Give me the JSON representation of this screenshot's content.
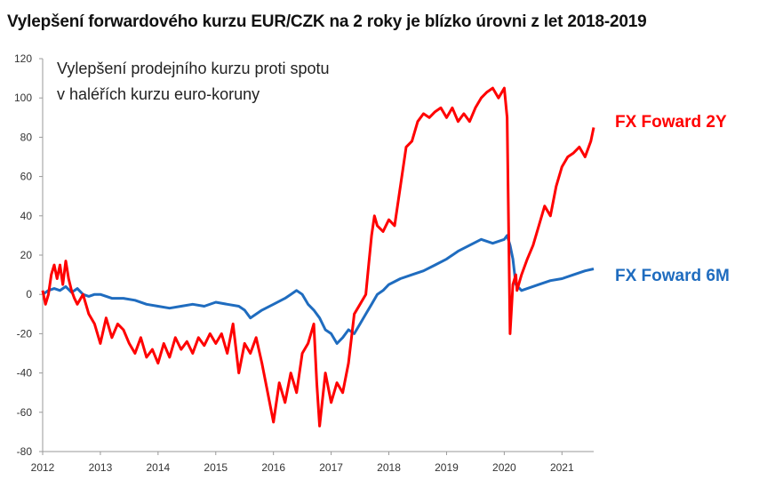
{
  "title": "Vylepšení forwardového kurzu EUR/CZK na 2 roky je blízko úrovni z let 2018-2019",
  "chart_data": {
    "type": "line",
    "subtitle_lines": [
      "Vylepšení prodejního kurzu proti spotu",
      "v haléřích kurzu euro-koruny"
    ],
    "xlabel": "",
    "ylabel": "",
    "xlim": [
      2012,
      2021.55
    ],
    "ylim": [
      -80,
      120
    ],
    "y_ticks": [
      120,
      100,
      80,
      60,
      40,
      20,
      0,
      -20,
      -40,
      -60,
      -80
    ],
    "x_ticks": [
      "2012",
      "2013",
      "2014",
      "2015",
      "2016",
      "2017",
      "2018",
      "2019",
      "2020",
      "2021"
    ],
    "grid": false,
    "series": [
      {
        "name": "FX Foward  2Y",
        "color": "#ff0000",
        "x": [
          2012.0,
          2012.05,
          2012.1,
          2012.15,
          2012.2,
          2012.25,
          2012.3,
          2012.35,
          2012.4,
          2012.45,
          2012.5,
          2012.55,
          2012.6,
          2012.7,
          2012.8,
          2012.9,
          2013.0,
          2013.1,
          2013.2,
          2013.3,
          2013.4,
          2013.5,
          2013.6,
          2013.7,
          2013.8,
          2013.9,
          2014.0,
          2014.1,
          2014.2,
          2014.3,
          2014.4,
          2014.5,
          2014.6,
          2014.7,
          2014.8,
          2014.9,
          2015.0,
          2015.1,
          2015.2,
          2015.3,
          2015.4,
          2015.5,
          2015.6,
          2015.7,
          2015.8,
          2015.9,
          2016.0,
          2016.1,
          2016.2,
          2016.3,
          2016.4,
          2016.5,
          2016.6,
          2016.7,
          2016.75,
          2016.8,
          2016.9,
          2017.0,
          2017.1,
          2017.2,
          2017.3,
          2017.4,
          2017.5,
          2017.6,
          2017.65,
          2017.7,
          2017.75,
          2017.8,
          2017.9,
          2018.0,
          2018.1,
          2018.2,
          2018.3,
          2018.4,
          2018.5,
          2018.6,
          2018.7,
          2018.8,
          2018.9,
          2019.0,
          2019.1,
          2019.2,
          2019.3,
          2019.4,
          2019.5,
          2019.6,
          2019.7,
          2019.8,
          2019.9,
          2020.0,
          2020.05,
          2020.1,
          2020.15,
          2020.2,
          2020.22,
          2020.25,
          2020.3,
          2020.4,
          2020.5,
          2020.6,
          2020.7,
          2020.8,
          2020.9,
          2021.0,
          2021.1,
          2021.2,
          2021.3,
          2021.4,
          2021.5,
          2021.55
        ],
        "values": [
          2,
          -5,
          0,
          10,
          15,
          8,
          15,
          5,
          17,
          8,
          2,
          -2,
          -5,
          0,
          -10,
          -15,
          -25,
          -12,
          -22,
          -15,
          -18,
          -25,
          -30,
          -22,
          -32,
          -28,
          -35,
          -25,
          -32,
          -22,
          -28,
          -24,
          -30,
          -22,
          -26,
          -20,
          -25,
          -20,
          -30,
          -15,
          -40,
          -25,
          -30,
          -22,
          -35,
          -50,
          -65,
          -45,
          -55,
          -40,
          -50,
          -30,
          -25,
          -15,
          -45,
          -67,
          -40,
          -55,
          -45,
          -50,
          -35,
          -10,
          -5,
          0,
          15,
          30,
          40,
          35,
          32,
          38,
          35,
          55,
          75,
          78,
          88,
          92,
          90,
          93,
          95,
          90,
          95,
          88,
          92,
          88,
          95,
          100,
          103,
          105,
          100,
          105,
          90,
          -20,
          5,
          10,
          2,
          5,
          10,
          18,
          25,
          35,
          45,
          40,
          55,
          65,
          70,
          72,
          75,
          70,
          78,
          85
        ]
      },
      {
        "name": "FX Foward  6M",
        "color": "#1f6cbf",
        "x": [
          2012.0,
          2012.1,
          2012.2,
          2012.3,
          2012.4,
          2012.5,
          2012.6,
          2012.7,
          2012.8,
          2012.9,
          2013.0,
          2013.2,
          2013.4,
          2013.6,
          2013.8,
          2014.0,
          2014.2,
          2014.4,
          2014.6,
          2014.8,
          2015.0,
          2015.2,
          2015.4,
          2015.5,
          2015.6,
          2015.8,
          2016.0,
          2016.2,
          2016.3,
          2016.4,
          2016.5,
          2016.6,
          2016.7,
          2016.8,
          2016.9,
          2017.0,
          2017.1,
          2017.2,
          2017.3,
          2017.4,
          2017.5,
          2017.6,
          2017.7,
          2017.8,
          2017.9,
          2018.0,
          2018.2,
          2018.4,
          2018.6,
          2018.8,
          2019.0,
          2019.2,
          2019.4,
          2019.6,
          2019.8,
          2020.0,
          2020.05,
          2020.1,
          2020.15,
          2020.2,
          2020.3,
          2020.4,
          2020.6,
          2020.8,
          2021.0,
          2021.2,
          2021.4,
          2021.55
        ],
        "values": [
          0,
          2,
          3,
          2,
          4,
          1,
          3,
          0,
          -1,
          0,
          0,
          -2,
          -2,
          -3,
          -5,
          -6,
          -7,
          -6,
          -5,
          -6,
          -4,
          -5,
          -6,
          -8,
          -12,
          -8,
          -5,
          -2,
          0,
          2,
          0,
          -5,
          -8,
          -12,
          -18,
          -20,
          -25,
          -22,
          -18,
          -20,
          -15,
          -10,
          -5,
          0,
          2,
          5,
          8,
          10,
          12,
          15,
          18,
          22,
          25,
          28,
          26,
          28,
          30,
          25,
          18,
          5,
          2,
          3,
          5,
          7,
          8,
          10,
          12,
          13
        ]
      }
    ]
  }
}
